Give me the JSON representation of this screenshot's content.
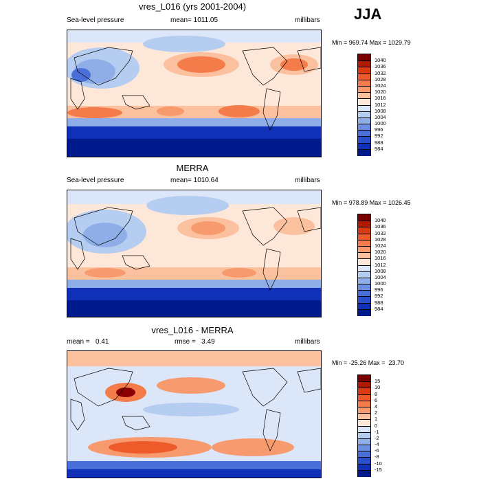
{
  "season": "JJA",
  "colors": {
    "deep_blue": "#00007f",
    "mid_blue": "#2a5fd9",
    "light_blue": "#a7c3ef",
    "pale": "#fbe6d8",
    "mid_red": "#f0905d",
    "deep_red": "#8a0000"
  },
  "panels": [
    {
      "title": "vres_L016 (yrs 2001-2004)",
      "left_label": "Sea-level pressure",
      "center_label": "mean= 1011.05",
      "right_label": "millibars",
      "minmax": "Min = 969.74 Max = 1029.79",
      "colorbar": {
        "labels": [
          "1040",
          "1036",
          "1032",
          "1028",
          "1024",
          "1020",
          "1016",
          "1012",
          "1008",
          "1004",
          "1000",
          "996",
          "992",
          "988",
          "984"
        ],
        "colors": [
          "#7a0000",
          "#b01a00",
          "#d83c10",
          "#ee5a2a",
          "#f47b4a",
          "#f79a6e",
          "#fbc19f",
          "#fde7d8",
          "#dbe7f8",
          "#b6cdf2",
          "#8faee8",
          "#6a8fe0",
          "#4a6fd8",
          "#2a4fcc",
          "#1030b8",
          "#001a8c"
        ]
      }
    },
    {
      "title": "MERRA",
      "left_label": "Sea-level pressure",
      "center_label": "mean= 1010.64",
      "right_label": "millibars",
      "minmax": "Min = 978.89 Max = 1026.45",
      "colorbar": {
        "labels": [
          "1040",
          "1036",
          "1032",
          "1028",
          "1024",
          "1020",
          "1016",
          "1012",
          "1008",
          "1004",
          "1000",
          "996",
          "992",
          "988",
          "984"
        ],
        "colors": [
          "#7a0000",
          "#b01a00",
          "#d83c10",
          "#ee5a2a",
          "#f47b4a",
          "#f79a6e",
          "#fbc19f",
          "#fde7d8",
          "#dbe7f8",
          "#b6cdf2",
          "#8faee8",
          "#6a8fe0",
          "#4a6fd8",
          "#2a4fcc",
          "#1030b8",
          "#001a8c"
        ]
      }
    },
    {
      "title": "vres_L016 - MERRA",
      "left_label": "mean =   0.41",
      "center_label": "rmse =   3.49",
      "right_label": "millibars",
      "minmax": "Min = -25.26 Max =  23.70",
      "colorbar": {
        "labels": [
          "15",
          "10",
          "8",
          "6",
          "4",
          "2",
          "1",
          "0",
          "-1",
          "-2",
          "-4",
          "-6",
          "-8",
          "-10",
          "-15"
        ],
        "colors": [
          "#7a0000",
          "#b01a00",
          "#d83c10",
          "#ee5a2a",
          "#f47b4a",
          "#f79a6e",
          "#fbc19f",
          "#fde7d8",
          "#dbe7f8",
          "#b6cdf2",
          "#8faee8",
          "#6a8fe0",
          "#4a6fd8",
          "#2a4fcc",
          "#1030b8",
          "#001a8c"
        ]
      }
    }
  ]
}
